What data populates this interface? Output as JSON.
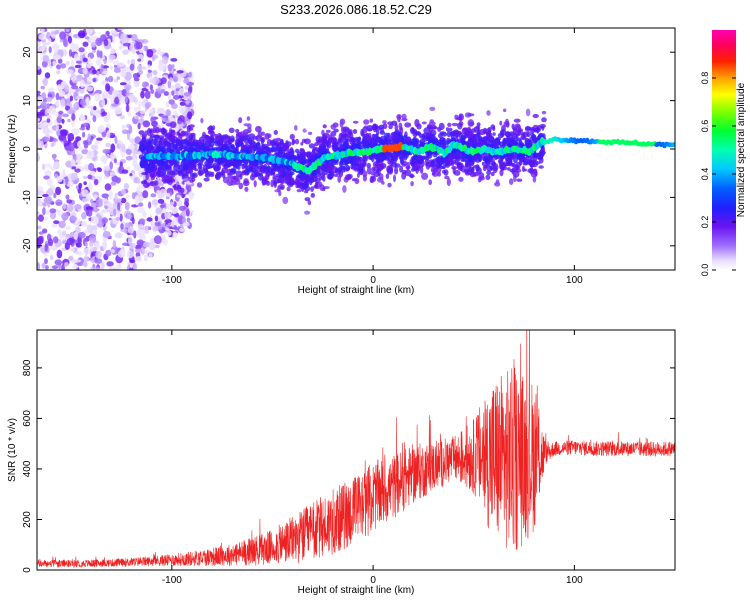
{
  "figure_title": "S233.2026.086.18.52.C29",
  "chart_data": [
    {
      "type": "heatmap",
      "title": "S233.2026.086.18.52.C29",
      "xlabel": "Height of straight line (km)",
      "ylabel": "Frequency (Hz)",
      "xlim": [
        -167,
        150
      ],
      "ylim": [
        -25,
        25
      ],
      "xticks": [
        -100,
        0,
        100
      ],
      "yticks": [
        -20,
        -10,
        0,
        10,
        20
      ],
      "xtick_labels": [
        "-100",
        "0",
        "100"
      ],
      "ytick_labels": [
        "-20",
        "-10",
        "0",
        "10",
        "20"
      ],
      "colorbar": {
        "label": "Normalized spectral amplitude",
        "range": [
          0.0,
          1.0
        ],
        "ticks": [
          0.0,
          0.2,
          0.4,
          0.6,
          0.8
        ],
        "tick_labels": [
          "0.0",
          "0.2",
          "0.4",
          "0.6",
          "0.8"
        ],
        "colormap": "rainbow (white → purple → blue → cyan → green → yellow → red → magenta)"
      },
      "ridge": {
        "description": "Dominant frequency ridge (Hz) vs height (km)",
        "x": [
          -110,
          -95,
          -80,
          -65,
          -50,
          -40,
          -32,
          -25,
          -15,
          -5,
          5,
          15,
          22,
          28,
          32,
          36,
          40,
          48,
          55,
          62,
          70,
          78,
          84,
          90,
          100,
          110,
          120,
          130,
          140,
          150
        ],
        "y": [
          -1.5,
          -1.5,
          -1.0,
          -1.5,
          -2.0,
          -3.0,
          -4.5,
          -2.0,
          -1.0,
          -0.5,
          0.0,
          0.5,
          -0.5,
          0.5,
          0.0,
          -1.0,
          1.0,
          -0.5,
          0.0,
          -0.5,
          0.0,
          -0.5,
          1.5,
          2.0,
          1.8,
          1.6,
          1.4,
          1.2,
          1.0,
          0.8
        ]
      },
      "high_amplitude_segment_x": [
        5,
        15
      ],
      "scatter_noise_region_x": [
        -167,
        -100
      ]
    },
    {
      "type": "line",
      "xlabel": "Height of straight line (km)",
      "ylabel": "SNR (10 * v/v)",
      "xlim": [
        -167,
        150
      ],
      "ylim": [
        0,
        950
      ],
      "xticks": [
        -100,
        0,
        100
      ],
      "yticks": [
        0,
        200,
        400,
        600,
        800
      ],
      "xtick_labels": [
        "-100",
        "0",
        "100"
      ],
      "ytick_labels": [
        "0",
        "200",
        "400",
        "600",
        "800"
      ],
      "series": [
        {
          "name": "SNR",
          "color": "#ee2222",
          "envelope_x": [
            -167,
            -150,
            -130,
            -110,
            -90,
            -70,
            -50,
            -30,
            -10,
            0,
            10,
            20,
            30,
            40,
            50,
            60,
            70,
            80,
            86,
            90,
            100,
            110,
            120,
            130,
            140,
            150
          ],
          "envelope_mean": [
            25,
            25,
            28,
            35,
            45,
            60,
            90,
            150,
            230,
            290,
            330,
            380,
            410,
            440,
            450,
            440,
            430,
            450,
            460,
            480,
            485,
            480,
            480,
            480,
            478,
            480
          ],
          "envelope_spread": [
            15,
            15,
            15,
            20,
            30,
            45,
            70,
            120,
            140,
            140,
            130,
            120,
            100,
            90,
            150,
            330,
            380,
            300,
            40,
            30,
            30,
            30,
            30,
            30,
            30,
            30
          ]
        }
      ]
    }
  ],
  "colors": {
    "frame": "#000000",
    "line": "#ee2222",
    "background": "#ffffff"
  }
}
